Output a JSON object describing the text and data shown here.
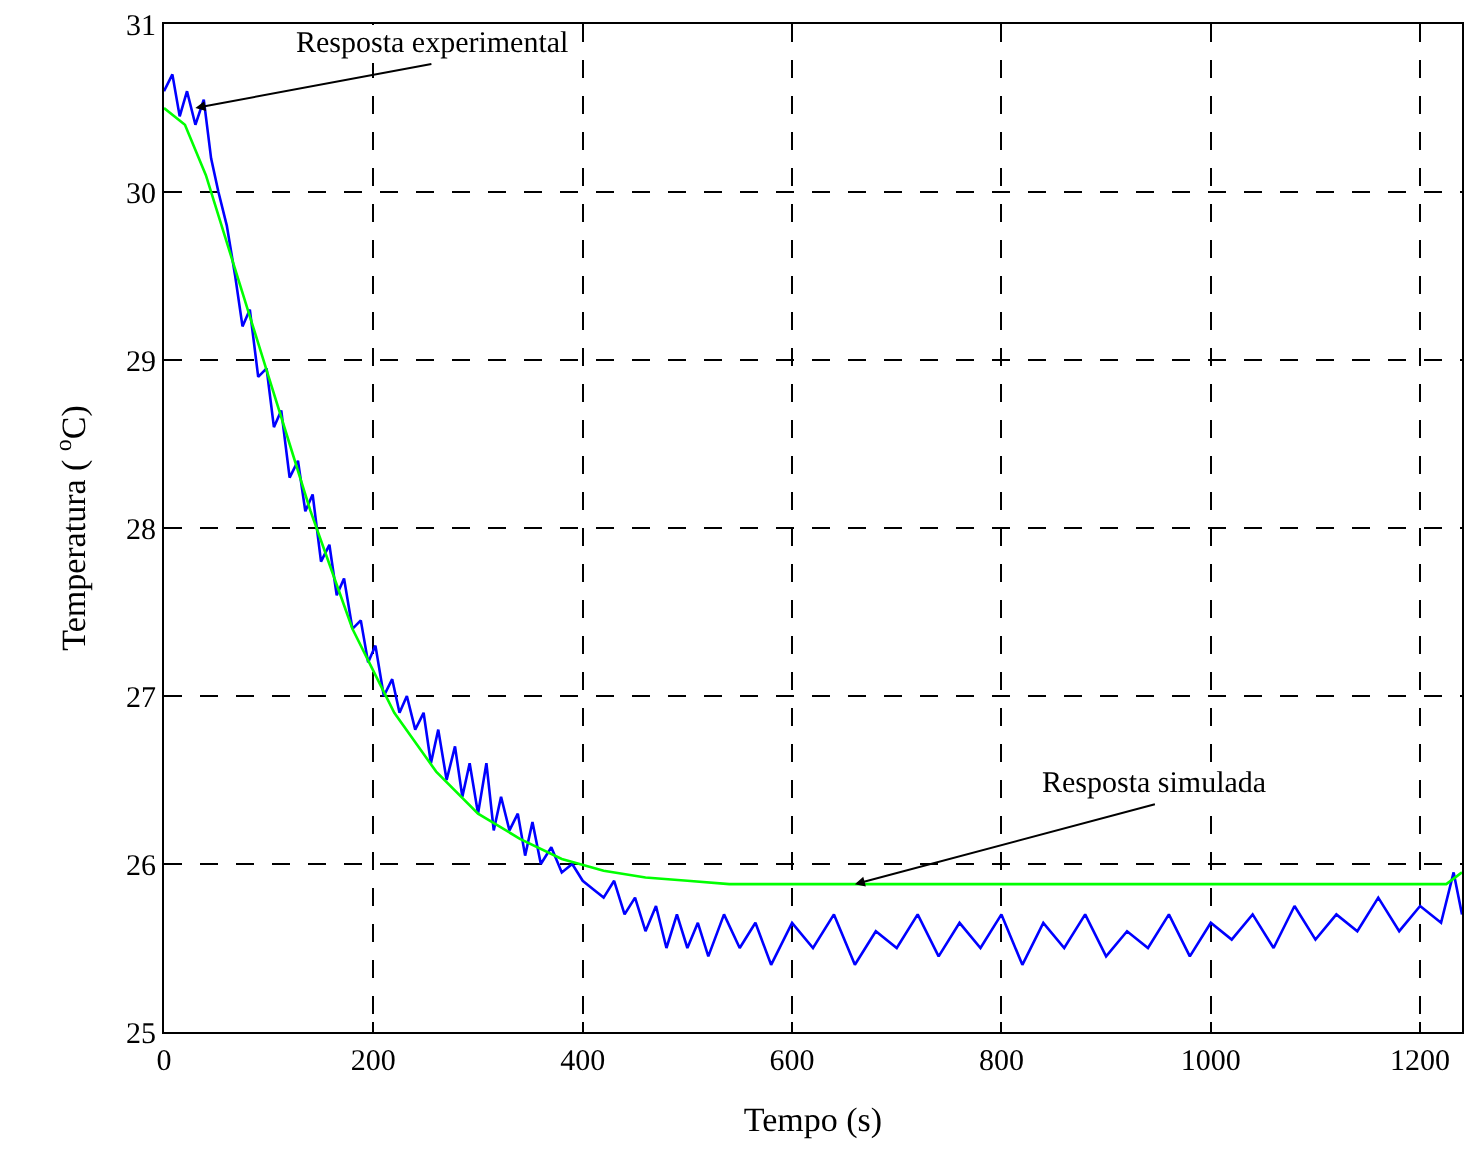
{
  "chart_data": {
    "type": "line",
    "xlabel": "Tempo (s)",
    "ylabel": "Temperatura ( $^{o}$C)",
    "xlim": [
      0,
      1240
    ],
    "xticks": [
      0,
      200,
      400,
      600,
      800,
      1000,
      1200
    ],
    "ylim": [
      25,
      31
    ],
    "yticks": [
      25,
      26,
      27,
      28,
      29,
      30,
      31
    ],
    "grid": true,
    "line_style": "solid",
    "marker": "none",
    "series": [
      {
        "color": "#0000ff",
        "x": [
          0,
          8,
          15,
          22,
          30,
          38,
          45,
          52,
          60,
          68,
          75,
          82,
          90,
          98,
          105,
          112,
          120,
          128,
          135,
          142,
          150,
          158,
          165,
          172,
          180,
          188,
          195,
          202,
          210,
          218,
          225,
          232,
          240,
          248,
          255,
          262,
          270,
          278,
          285,
          292,
          300,
          308,
          315,
          322,
          330,
          338,
          345,
          352,
          360,
          370,
          380,
          390,
          400,
          410,
          420,
          430,
          440,
          450,
          460,
          470,
          480,
          490,
          500,
          510,
          520,
          535,
          550,
          565,
          580,
          600,
          620,
          640,
          660,
          680,
          700,
          720,
          740,
          760,
          780,
          800,
          820,
          840,
          860,
          880,
          900,
          920,
          940,
          960,
          980,
          1000,
          1020,
          1040,
          1060,
          1080,
          1100,
          1120,
          1140,
          1160,
          1180,
          1200,
          1220,
          1232,
          1240
        ],
        "values": [
          30.6,
          30.7,
          30.45,
          30.6,
          30.4,
          30.55,
          30.2,
          30.0,
          29.8,
          29.5,
          29.2,
          29.3,
          28.9,
          28.95,
          28.6,
          28.7,
          28.3,
          28.4,
          28.1,
          28.2,
          27.8,
          27.9,
          27.6,
          27.7,
          27.4,
          27.45,
          27.2,
          27.3,
          27.0,
          27.1,
          26.9,
          27.0,
          26.8,
          26.9,
          26.6,
          26.8,
          26.5,
          26.7,
          26.4,
          26.6,
          26.3,
          26.6,
          26.2,
          26.4,
          26.2,
          26.3,
          26.05,
          26.25,
          26.0,
          26.1,
          25.95,
          26.0,
          25.9,
          25.85,
          25.8,
          25.9,
          25.7,
          25.8,
          25.6,
          25.75,
          25.5,
          25.7,
          25.5,
          25.65,
          25.45,
          25.7,
          25.5,
          25.65,
          25.4,
          25.65,
          25.5,
          25.7,
          25.4,
          25.6,
          25.5,
          25.7,
          25.45,
          25.65,
          25.5,
          25.7,
          25.4,
          25.65,
          25.5,
          25.7,
          25.45,
          25.6,
          25.5,
          25.7,
          25.45,
          25.65,
          25.55,
          25.7,
          25.5,
          25.75,
          25.55,
          25.7,
          25.6,
          25.8,
          25.6,
          25.75,
          25.65,
          25.95,
          25.7
        ]
      },
      {
        "color": "#00ff00",
        "x": [
          0,
          20,
          40,
          60,
          80,
          100,
          120,
          140,
          160,
          180,
          200,
          220,
          260,
          300,
          340,
          380,
          420,
          460,
          500,
          540,
          1225,
          1240
        ],
        "values": [
          30.5,
          30.4,
          30.1,
          29.7,
          29.3,
          28.9,
          28.5,
          28.1,
          27.75,
          27.4,
          27.15,
          26.9,
          26.55,
          26.3,
          26.15,
          26.03,
          25.96,
          25.92,
          25.9,
          25.88,
          25.88,
          25.95
        ]
      }
    ],
    "annotations": [
      {
        "text": "Resposta experimental",
        "x": 30,
        "y": 30.5
      },
      {
        "text": "Resposta simulada",
        "x": 660,
        "y": 25.88
      }
    ]
  }
}
